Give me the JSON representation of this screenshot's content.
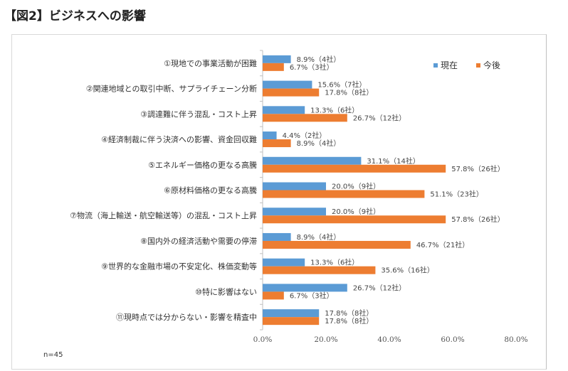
{
  "title": "【図2】ビジネスへの影響",
  "colors": {
    "series_current": "#5b9bd5",
    "series_future": "#ed7d31",
    "axis": "#bfbfbf"
  },
  "chart_data": {
    "type": "bar",
    "orientation": "horizontal",
    "title": "",
    "xlabel": "",
    "ylabel": "",
    "xlim": [
      0,
      80
    ],
    "ticks": [
      "0.0%",
      "20.0%",
      "40.0%",
      "60.0%",
      "80.0%"
    ],
    "tick_values": [
      0,
      20,
      40,
      60,
      80
    ],
    "legend_position": "top-right",
    "categories": [
      "①現地での事業活動が困難",
      "②関連地域との取引中断、サプライチェーン分断",
      "③調達難に伴う混乱・コスト上昇",
      "④経済制裁に伴う決済への影響、資金回収難",
      "⑤エネルギー価格の更なる高騰",
      "⑥原材料価格の更なる高騰",
      "⑦物流（海上輸送・航空輸送等）の混乱・コスト上昇",
      "⑧国内外の経済活動や需要の停滞",
      "⑨世界的な金融市場の不安定化、株価変動等",
      "⑩特に影響はない",
      "⑪現時点では分からない・影響を精査中"
    ],
    "series": [
      {
        "name": "現在",
        "values": [
          8.9,
          15.6,
          13.3,
          4.4,
          31.1,
          20.0,
          20.0,
          8.9,
          13.3,
          26.7,
          17.8
        ],
        "labels": [
          "8.9%（4社）",
          "15.6%（7社）",
          "13.3%（6社）",
          "4.4%（2社）",
          "31.1%（14社）",
          "20.0%（9社）",
          "20.0%（9社）",
          "8.9%（4社）",
          "13.3%（6社）",
          "26.7%（12社）",
          "17.8%（8社）"
        ]
      },
      {
        "name": "今後",
        "values": [
          6.7,
          17.8,
          26.7,
          8.9,
          57.8,
          51.1,
          57.8,
          46.7,
          35.6,
          6.7,
          17.8
        ],
        "labels": [
          "6.7%（3社）",
          "17.8%（8社）",
          "26.7%（12社）",
          "8.9%（4社）",
          "57.8%（26社）",
          "51.1%（23社）",
          "57.8%（26社）",
          "46.7%（21社）",
          "35.6%（16社）",
          "6.7%（3社）",
          "17.8%（8社）"
        ]
      }
    ],
    "note": "n=45"
  }
}
